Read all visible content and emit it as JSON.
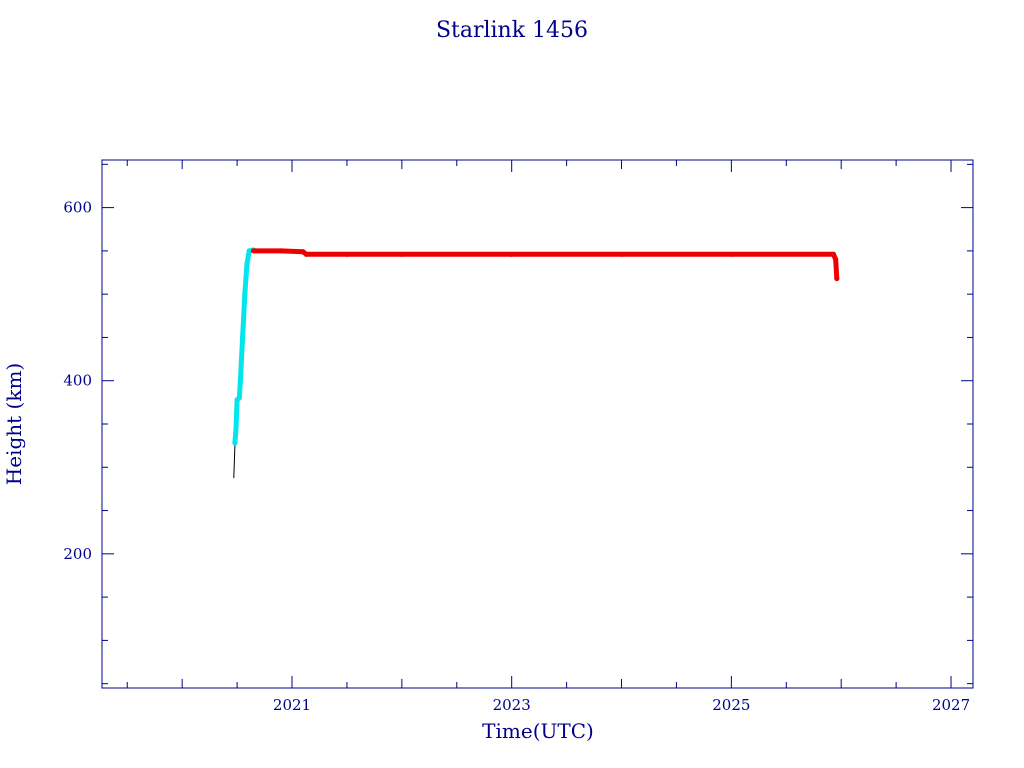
{
  "chart_data": {
    "type": "line",
    "title": "Starlink 1456",
    "xlabel": "Time(UTC)",
    "ylabel": "Height (km)",
    "xlim": [
      2019.27,
      2027.2
    ],
    "ylim": [
      45,
      655
    ],
    "x_ticks": [
      2021,
      2023,
      2025,
      2027
    ],
    "x_tick_labels": [
      "2021",
      "2023",
      "2025",
      "2027"
    ],
    "y_ticks": [
      200,
      400,
      600
    ],
    "y_tick_labels": [
      "200",
      "400",
      "600"
    ],
    "grid": false,
    "series": [
      {
        "color": "#000000",
        "points": [
          [
            2020.47,
            288
          ],
          [
            2020.48,
            325
          ]
        ]
      },
      {
        "color": "#00e5ee",
        "points": [
          [
            2020.48,
            328
          ],
          [
            2020.49,
            345
          ],
          [
            2020.5,
            378
          ],
          [
            2020.52,
            380
          ],
          [
            2020.53,
            400
          ],
          [
            2020.55,
            450
          ],
          [
            2020.57,
            500
          ],
          [
            2020.59,
            535
          ],
          [
            2020.61,
            550
          ],
          [
            2020.65,
            551
          ]
        ]
      },
      {
        "color": "#ee0000",
        "points": [
          [
            2020.65,
            550
          ],
          [
            2020.9,
            550
          ],
          [
            2021.1,
            549
          ],
          [
            2021.13,
            546
          ],
          [
            2021.5,
            546
          ],
          [
            2022.0,
            546
          ],
          [
            2023.0,
            546
          ],
          [
            2024.0,
            546
          ],
          [
            2025.0,
            546
          ],
          [
            2025.93,
            546
          ],
          [
            2025.95,
            540
          ],
          [
            2025.96,
            518
          ]
        ]
      }
    ]
  }
}
